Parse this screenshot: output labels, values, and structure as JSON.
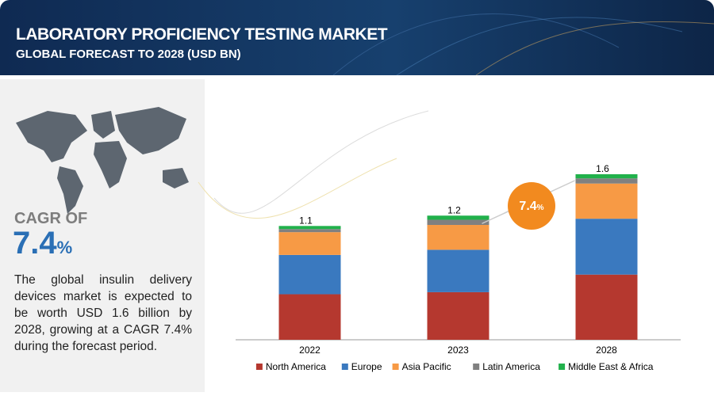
{
  "header": {
    "title": "LABORATORY PROFICIENCY TESTING MARKET",
    "subtitle": "GLOBAL FORECAST TO 2028 (USD BN)"
  },
  "sidebar": {
    "cagr_label": "CAGR OF",
    "cagr_value": "7.4",
    "cagr_unit": "%",
    "description": "The global insulin delivery devices market is expected to be worth USD 1.6 billion by 2028, growing at a CAGR 7.4% during the forecast period."
  },
  "chart_data": {
    "type": "stacked-bar",
    "categories": [
      "2022",
      "2023",
      "2028"
    ],
    "totals": [
      1.1,
      1.2,
      1.6
    ],
    "series": [
      {
        "name": "North America",
        "color": "#b5382f",
        "values": [
          0.44,
          0.46,
          0.63
        ]
      },
      {
        "name": "Europe",
        "color": "#3a79bf",
        "values": [
          0.38,
          0.41,
          0.54
        ]
      },
      {
        "name": "Asia Pacific",
        "color": "#f79a45",
        "values": [
          0.22,
          0.24,
          0.34
        ]
      },
      {
        "name": "Latin America",
        "color": "#808080",
        "values": [
          0.03,
          0.05,
          0.05
        ]
      },
      {
        "name": "Middle East & Africa",
        "color": "#21b14b",
        "values": [
          0.03,
          0.04,
          0.04
        ]
      }
    ],
    "legend": "bottom"
  }
}
